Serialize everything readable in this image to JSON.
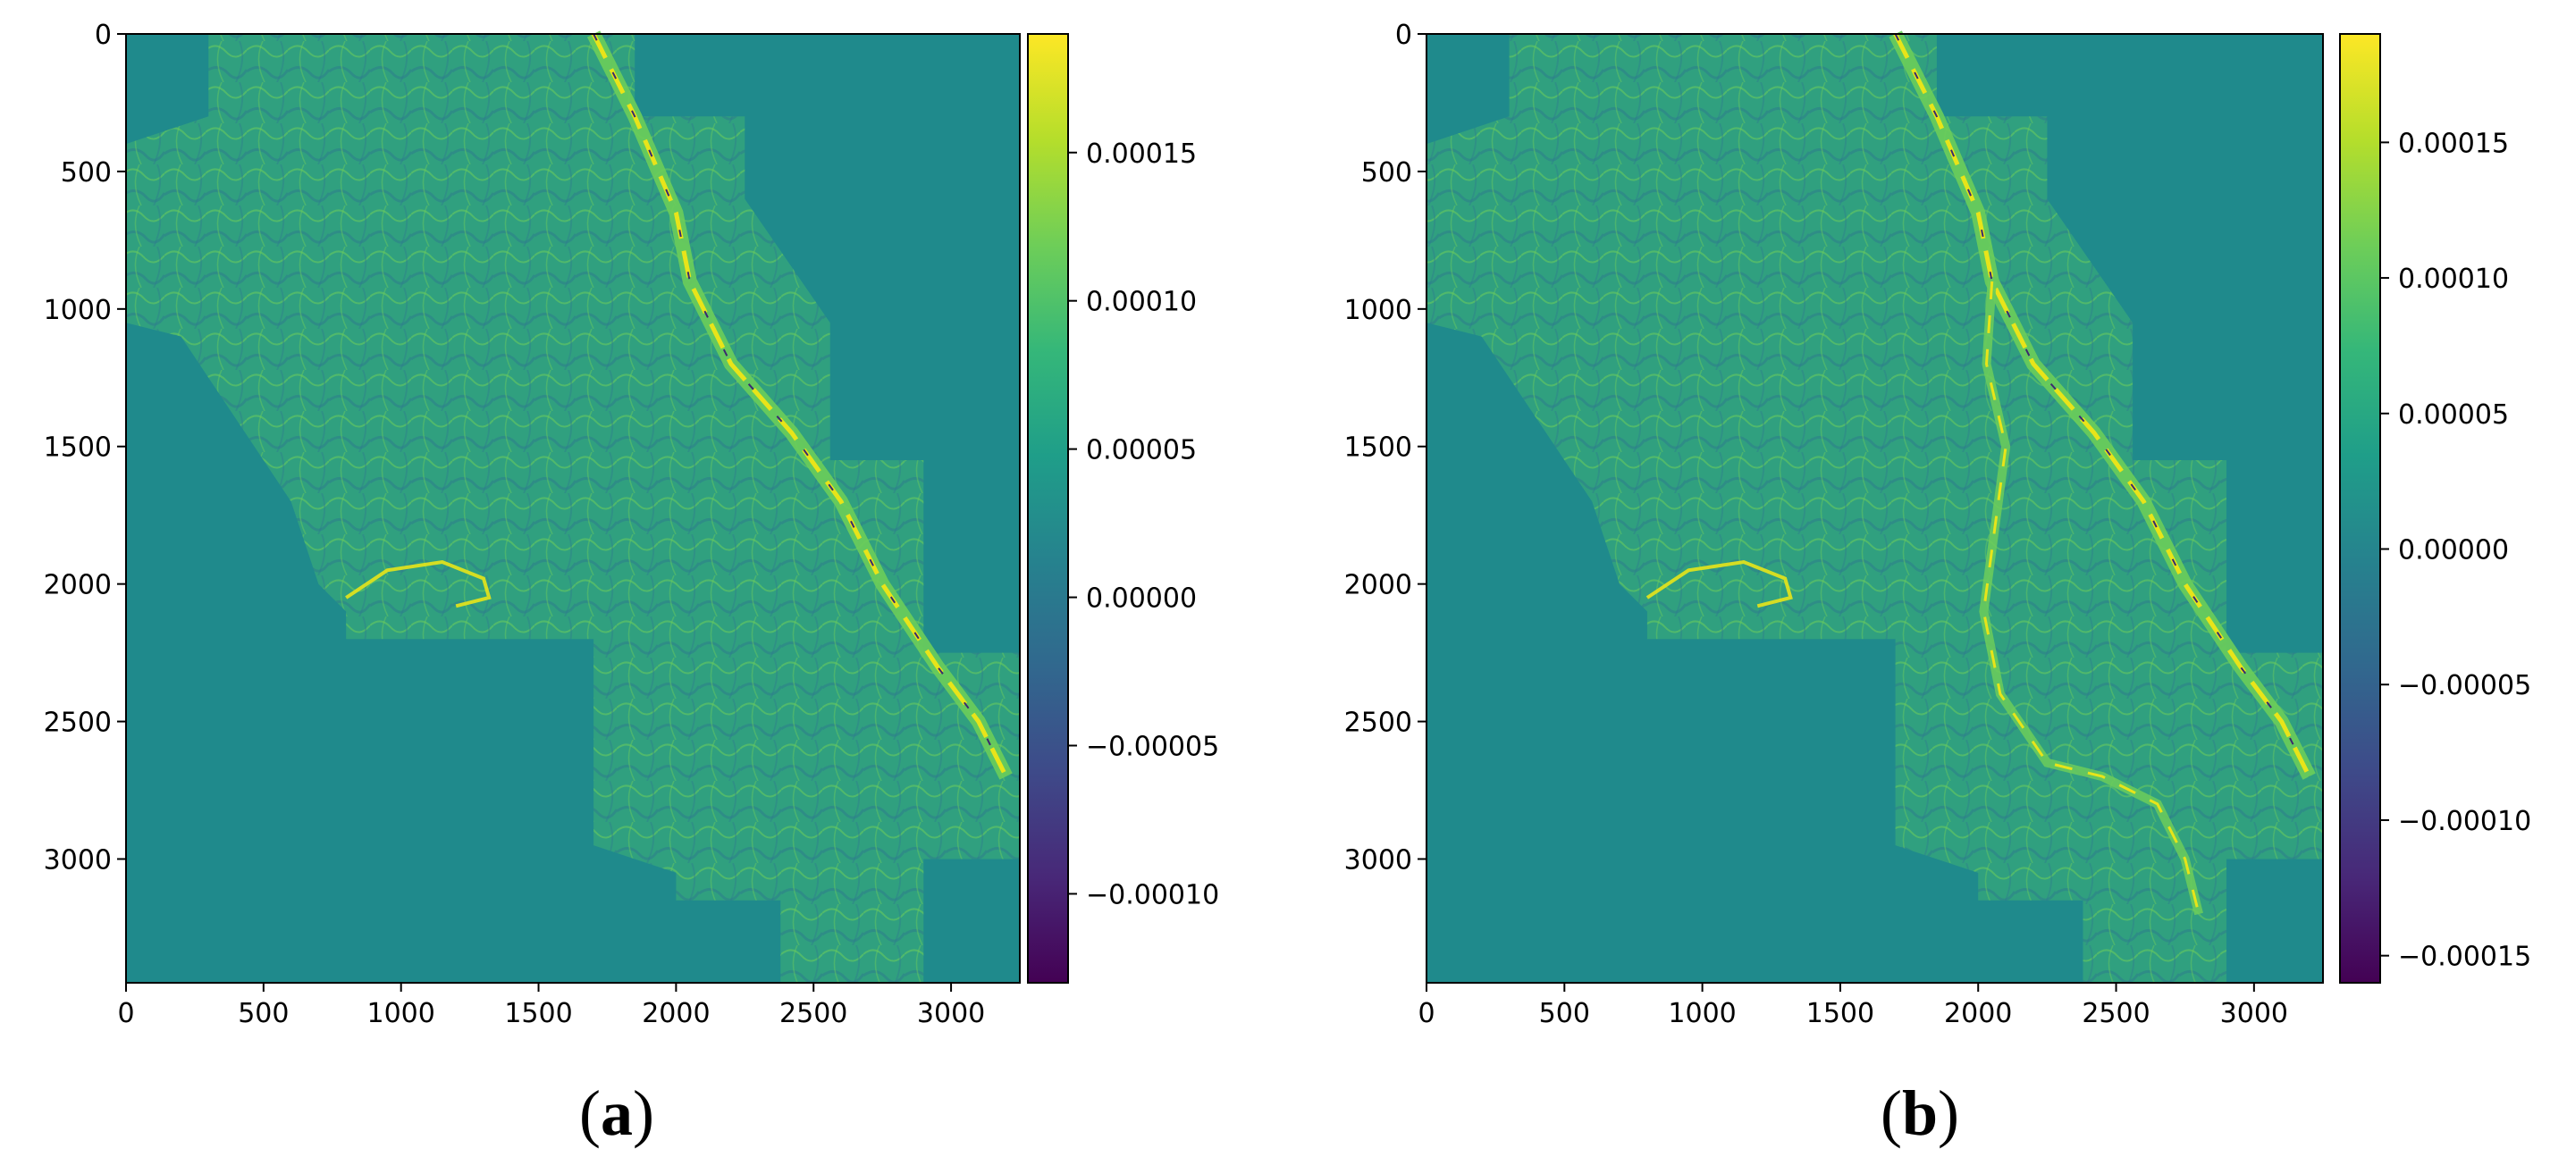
{
  "chart_data": [
    {
      "type": "heatmap",
      "panel_label": "a",
      "x_ticks": [
        0,
        500,
        1000,
        1500,
        2000,
        2500,
        3000
      ],
      "y_ticks": [
        0,
        500,
        1000,
        1500,
        2000,
        2500,
        3000
      ],
      "xlim": [
        0,
        3250
      ],
      "ylim": [
        3450,
        0
      ],
      "colorbar": {
        "colormap": "viridis",
        "range": [
          -0.00013,
          0.00019
        ],
        "ticks": [
          0.00015,
          0.0001,
          5e-05,
          0.0,
          -5e-05,
          -0.0001
        ],
        "tick_labels": [
          "0.00015",
          "0.00010",
          "0.00005",
          "0.00000",
          "−0.00005",
          "−0.00010"
        ]
      },
      "background_value": 0.0
    },
    {
      "type": "heatmap",
      "panel_label": "b",
      "x_ticks": [
        0,
        500,
        1000,
        1500,
        2000,
        2500,
        3000
      ],
      "y_ticks": [
        0,
        500,
        1000,
        1500,
        2000,
        2500,
        3000
      ],
      "xlim": [
        0,
        3250
      ],
      "ylim": [
        3450,
        0
      ],
      "colorbar": {
        "colormap": "viridis",
        "range": [
          -0.00016,
          0.00019
        ],
        "ticks": [
          0.00015,
          0.0001,
          5e-05,
          0.0,
          -5e-05,
          -0.0001,
          -0.00015
        ],
        "tick_labels": [
          "0.00015",
          "0.00010",
          "0.00005",
          "0.00000",
          "−0.00005",
          "−0.00010",
          "−0.00015"
        ]
      },
      "background_value": 0.0
    }
  ],
  "colors": {
    "background_teal": "#1f8a8c",
    "field_green": "#30a07f",
    "field_blue": "#2c7a8e",
    "ridge_light": "#6ccd5a",
    "ridge_yellow": "#e8e419",
    "ridge_dark": "#3b2a6e",
    "viridis_stops": [
      "#440154",
      "#482878",
      "#3e4a89",
      "#31688e",
      "#26828e",
      "#1f9e89",
      "#35b779",
      "#6ece58",
      "#b5de2b",
      "#fde725"
    ]
  }
}
